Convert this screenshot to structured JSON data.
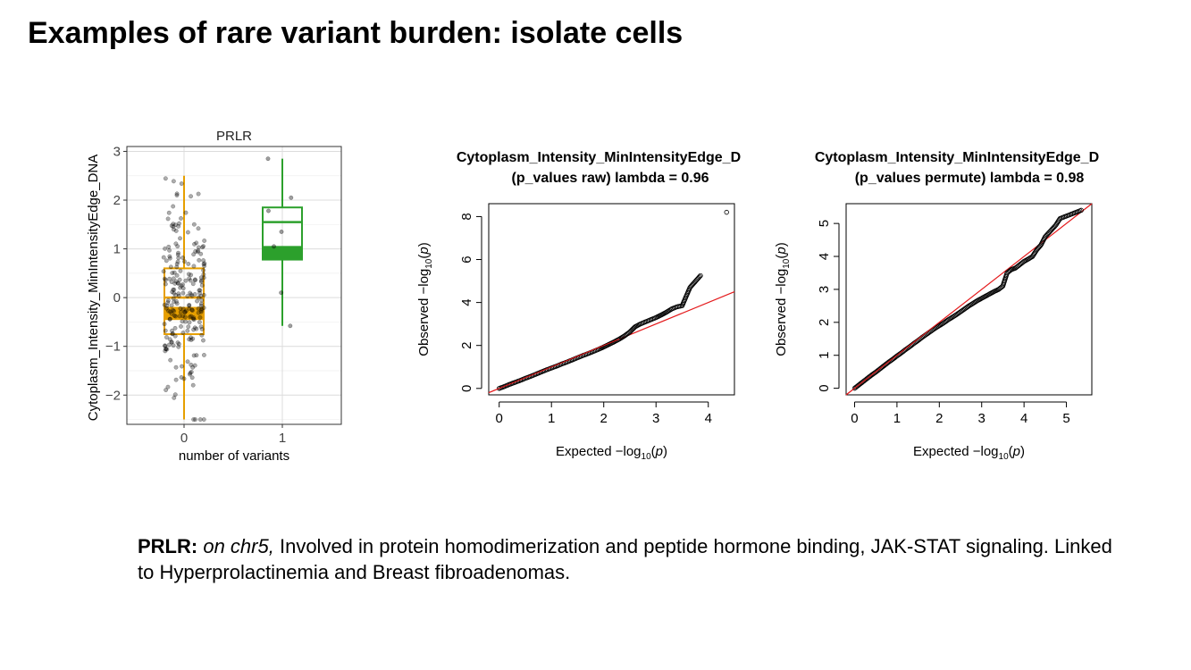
{
  "slide": {
    "title": "Examples of rare variant burden: isolate cells"
  },
  "caption": {
    "gene": "PRLR:",
    "location": "on chr5,",
    "text": "Involved in protein homodimerization and peptide hormone binding, JAK-STAT signaling. Linked to Hyperprolactinemia and Breast fibroadenomas."
  },
  "chart_data": [
    {
      "type": "box",
      "title": "PRLR",
      "xlabel": "number of variants",
      "ylabel": "Cytoplasm_Intensity_MinIntensityEdge_DNA",
      "categories": [
        "0",
        "1"
      ],
      "ylim": [
        -2.6,
        3.1
      ],
      "yticks": [
        -2,
        -1,
        0,
        1,
        2,
        3
      ],
      "ytick_labels": [
        "−2",
        "−1",
        "0",
        "1",
        "2",
        "3"
      ],
      "grid": true,
      "boxes": [
        {
          "category": "0",
          "color": "#E69F00",
          "whisker_low": -2.5,
          "q1": -0.75,
          "median": 0.0,
          "q3": 0.6,
          "whisker_high": 2.5,
          "notch_low": -0.45,
          "notch_high": -0.2,
          "n_points": 230,
          "points_range": [
            -2.5,
            2.5
          ]
        },
        {
          "category": "1",
          "color": "#2CA02C",
          "whisker_low": -0.58,
          "q1": 0.78,
          "median": 1.55,
          "q3": 1.85,
          "whisker_high": 2.85,
          "notch_low": 0.78,
          "notch_high": 1.05,
          "points": [
            2.85,
            2.05,
            1.78,
            1.35,
            1.05,
            0.1,
            -0.58
          ]
        }
      ]
    },
    {
      "type": "scatter",
      "title": "Cytoplasm_Intensity_MinIntensityEdge_D\n(p_values raw) lambda = 0.96",
      "title_lines": [
        "Cytoplasm_Intensity_MinIntensityEdge_D",
        "(p_values raw) lambda = 0.96"
      ],
      "xlabel": "Expected −log10(p)",
      "ylabel": "Observed −log10(p)",
      "xlim": [
        -0.2,
        4.5
      ],
      "ylim": [
        -0.3,
        8.6
      ],
      "xticks": [
        0,
        1,
        2,
        3,
        4
      ],
      "yticks": [
        0,
        2,
        4,
        6,
        8
      ],
      "reference_line": {
        "color": "#E41A1C",
        "slope": 1,
        "intercept": 0
      },
      "points": [
        [
          0,
          0
        ],
        [
          0.1,
          0.09
        ],
        [
          0.2,
          0.19
        ],
        [
          0.3,
          0.28
        ],
        [
          0.4,
          0.37
        ],
        [
          0.5,
          0.47
        ],
        [
          0.6,
          0.56
        ],
        [
          0.7,
          0.66
        ],
        [
          0.8,
          0.76
        ],
        [
          0.9,
          0.86
        ],
        [
          1.0,
          0.95
        ],
        [
          1.1,
          1.04
        ],
        [
          1.2,
          1.14
        ],
        [
          1.3,
          1.23
        ],
        [
          1.4,
          1.33
        ],
        [
          1.5,
          1.43
        ],
        [
          1.6,
          1.53
        ],
        [
          1.7,
          1.62
        ],
        [
          1.8,
          1.72
        ],
        [
          1.9,
          1.82
        ],
        [
          2.0,
          1.93
        ],
        [
          2.1,
          2.05
        ],
        [
          2.2,
          2.17
        ],
        [
          2.3,
          2.3
        ],
        [
          2.4,
          2.45
        ],
        [
          2.5,
          2.63
        ],
        [
          2.55,
          2.75
        ],
        [
          2.6,
          2.87
        ],
        [
          2.7,
          3.0
        ],
        [
          2.8,
          3.1
        ],
        [
          2.9,
          3.2
        ],
        [
          3.0,
          3.3
        ],
        [
          3.1,
          3.42
        ],
        [
          3.2,
          3.55
        ],
        [
          3.3,
          3.7
        ],
        [
          3.4,
          3.8
        ],
        [
          3.5,
          3.85
        ],
        [
          3.65,
          4.7
        ],
        [
          3.85,
          5.25
        ],
        [
          4.35,
          8.2
        ]
      ]
    },
    {
      "type": "scatter",
      "title": "Cytoplasm_Intensity_MinIntensityEdge_D\n(p_values permute) lambda = 0.98",
      "title_lines": [
        "Cytoplasm_Intensity_MinIntensityEdge_D",
        "(p_values permute) lambda = 0.98"
      ],
      "xlabel": "Expected −log10(p)",
      "ylabel": "Observed −log10(p)",
      "xlim": [
        -0.2,
        5.6
      ],
      "ylim": [
        -0.2,
        5.6
      ],
      "xticks": [
        0,
        1,
        2,
        3,
        4,
        5
      ],
      "yticks": [
        0,
        1,
        2,
        3,
        4,
        5
      ],
      "reference_line": {
        "color": "#E41A1C",
        "slope": 1,
        "intercept": 0
      },
      "points": [
        [
          0,
          0
        ],
        [
          0.1,
          0.1
        ],
        [
          0.2,
          0.2
        ],
        [
          0.3,
          0.3
        ],
        [
          0.4,
          0.4
        ],
        [
          0.5,
          0.49
        ],
        [
          0.6,
          0.59
        ],
        [
          0.7,
          0.69
        ],
        [
          0.8,
          0.79
        ],
        [
          0.9,
          0.88
        ],
        [
          1.0,
          0.98
        ],
        [
          1.1,
          1.07
        ],
        [
          1.2,
          1.17
        ],
        [
          1.3,
          1.26
        ],
        [
          1.4,
          1.36
        ],
        [
          1.5,
          1.45
        ],
        [
          1.6,
          1.55
        ],
        [
          1.7,
          1.64
        ],
        [
          1.8,
          1.73
        ],
        [
          1.9,
          1.82
        ],
        [
          2.0,
          1.9
        ],
        [
          2.1,
          1.98
        ],
        [
          2.2,
          2.07
        ],
        [
          2.3,
          2.15
        ],
        [
          2.4,
          2.23
        ],
        [
          2.5,
          2.32
        ],
        [
          2.6,
          2.41
        ],
        [
          2.7,
          2.5
        ],
        [
          2.8,
          2.58
        ],
        [
          2.9,
          2.66
        ],
        [
          3.0,
          2.73
        ],
        [
          3.1,
          2.8
        ],
        [
          3.2,
          2.87
        ],
        [
          3.3,
          2.94
        ],
        [
          3.4,
          3.0
        ],
        [
          3.5,
          3.1
        ],
        [
          3.55,
          3.3
        ],
        [
          3.6,
          3.5
        ],
        [
          3.7,
          3.6
        ],
        [
          3.8,
          3.65
        ],
        [
          3.9,
          3.75
        ],
        [
          4.0,
          3.85
        ],
        [
          4.1,
          3.92
        ],
        [
          4.2,
          4.0
        ],
        [
          4.3,
          4.2
        ],
        [
          4.4,
          4.35
        ],
        [
          4.5,
          4.6
        ],
        [
          4.75,
          4.95
        ],
        [
          4.85,
          5.15
        ],
        [
          5.35,
          5.4
        ]
      ]
    }
  ]
}
